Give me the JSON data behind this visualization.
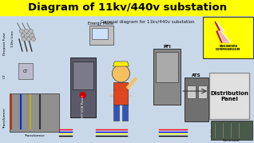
{
  "title": "Diagram of 11kv/440v substation",
  "title_bg": "#FFFF00",
  "title_color": "#000000",
  "subtitle": "General diagram for 11kv/440v substation",
  "main_bg": "#c8d8e8",
  "logo_bg": "#FFFF00",
  "logo_text": "ENGINEERS\nCOMMONROOM",
  "wire_colors": [
    "#FF0000",
    "#0000FF",
    "#FFFF00",
    "#000000"
  ],
  "dist_panel_bg": "#e0e0e0",
  "dist_panel_border": "#888888"
}
